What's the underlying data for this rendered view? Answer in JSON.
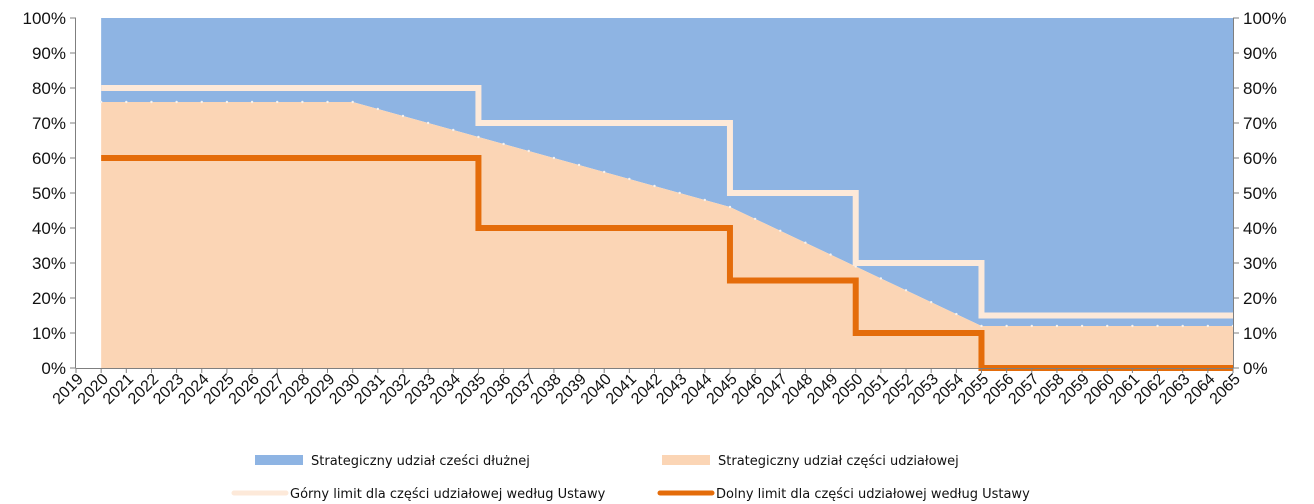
{
  "colors": {
    "debt_area": "#8eb4e3",
    "equity_area": "#fbd5b5",
    "upper_limit": "#fde9d9",
    "lower_limit": "#e46c0a",
    "axis": "#7f7f7f",
    "tick": "#a6a6a6"
  },
  "chart_data": {
    "type": "area",
    "x": [
      2019,
      2020,
      2021,
      2022,
      2023,
      2024,
      2025,
      2026,
      2027,
      2028,
      2029,
      2030,
      2031,
      2032,
      2033,
      2034,
      2035,
      2036,
      2037,
      2038,
      2039,
      2040,
      2041,
      2042,
      2043,
      2044,
      2045,
      2046,
      2047,
      2048,
      2049,
      2050,
      2051,
      2052,
      2053,
      2054,
      2055,
      2056,
      2057,
      2058,
      2059,
      2060,
      2061,
      2062,
      2063,
      2064,
      2065
    ],
    "x_tick_labels": [
      "2019",
      "2020",
      "2021",
      "2022",
      "2023",
      "2024",
      "2025",
      "2026",
      "2027",
      "2028",
      "2029",
      "2030",
      "2031",
      "2032",
      "2033",
      "2034",
      "2035",
      "2036",
      "2037",
      "2038",
      "2039",
      "2040",
      "2041",
      "2042",
      "2043",
      "2044",
      "2045",
      "2046",
      "2047",
      "2048",
      "2049",
      "2050",
      "2051",
      "2052",
      "2053",
      "2054",
      "2055",
      "2056",
      "2057",
      "2058",
      "2059",
      "2060",
      "2061",
      "2062",
      "2063",
      "2064",
      "2065"
    ],
    "y_tick_labels": [
      "0%",
      "10%",
      "20%",
      "30%",
      "40%",
      "50%",
      "60%",
      "70%",
      "80%",
      "90%",
      "100%"
    ],
    "y_right_tick_labels": [
      "0%",
      "10%",
      "20%",
      "30%",
      "40%",
      "50%",
      "60%",
      "70%",
      "80%",
      "90%",
      "100%"
    ],
    "ylim": [
      0,
      100
    ],
    "grid": false,
    "legend_placement": "bottom",
    "series": [
      {
        "name": "Strategiczny udział cześci dłużnej",
        "kind": "stacked-area",
        "x": [
          2020,
          2030,
          2045,
          2055,
          2065
        ],
        "values": [
          24,
          24,
          54,
          88,
          88
        ]
      },
      {
        "name": "Strategiczny udział części udziałowej",
        "kind": "stacked-area",
        "x": [
          2020,
          2030,
          2045,
          2055,
          2065
        ],
        "values": [
          76,
          76,
          46,
          12,
          12
        ]
      },
      {
        "name": "Górny limit dla części udziałowej według Ustawy",
        "kind": "step-line",
        "x": [
          2020,
          2035,
          2035,
          2045,
          2045,
          2050,
          2050,
          2055,
          2055,
          2065
        ],
        "values": [
          80,
          80,
          70,
          70,
          50,
          50,
          30,
          30,
          15,
          15
        ]
      },
      {
        "name": "Dolny limit dla części udziałowej według Ustawy",
        "kind": "step-line",
        "x": [
          2020,
          2035,
          2035,
          2045,
          2045,
          2050,
          2050,
          2055,
          2055,
          2065
        ],
        "values": [
          60,
          60,
          40,
          40,
          25,
          25,
          10,
          10,
          0,
          0
        ]
      }
    ]
  }
}
